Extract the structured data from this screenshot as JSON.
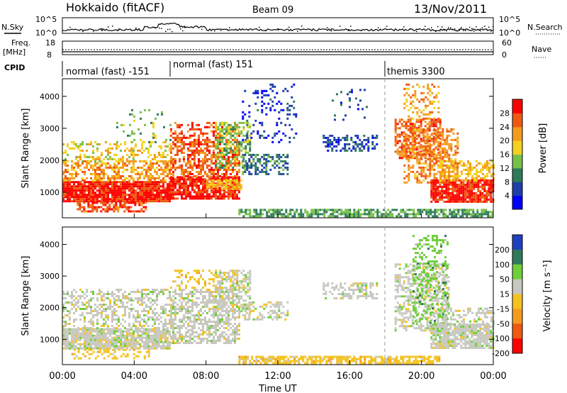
{
  "header": {
    "radar": "Hokkaido (fitACF)",
    "beam": "Beam 09",
    "date": "13/Nov/2011"
  },
  "top_panels": {
    "nsky_label": "N.Sky",
    "nsearch_label": "N.Search",
    "nsky_ticks": [
      "10^5",
      "10^0"
    ],
    "nsearch_ticks": [
      "10^5",
      "10^0"
    ],
    "freq_label": "Freq.",
    "freq_unit": "[MHz]",
    "freq_ticks": [
      "18",
      "8"
    ],
    "nave_label": "Nave",
    "nave_ticks": [
      "60",
      "0"
    ],
    "cpid_label": "CPID",
    "modes": [
      {
        "label": "normal (fast) -151",
        "start_hour": 0
      },
      {
        "label": "normal (fast) 151",
        "start_hour": 6
      },
      {
        "label": "themis 3300",
        "start_hour": 18
      }
    ]
  },
  "chart_data": [
    {
      "type": "heatmap",
      "panel": "power",
      "ylabel": "Slant Range [km]",
      "xlim": [
        0,
        24
      ],
      "ylim": [
        200,
        4550
      ],
      "yticks": [
        "1000",
        "2000",
        "3000",
        "4000"
      ],
      "colorbar_label": "Power [dB]",
      "colorbar_ticks": [
        "4",
        "8",
        "12",
        "16",
        "20",
        "24",
        "28"
      ],
      "colorbar_range": [
        0,
        32
      ],
      "colors": [
        "#0000ff",
        "#1e3fa8",
        "#2f7a5a",
        "#77c04a",
        "#f4d21f",
        "#f49a1e",
        "#ee5a12",
        "#ff0000"
      ],
      "regions": [
        {
          "t0": 0.0,
          "t1": 6.0,
          "r0": 700,
          "r1": 1350,
          "v": 29,
          "d": 0.95
        },
        {
          "t0": 0.8,
          "t1": 4.6,
          "r0": 400,
          "r1": 700,
          "v": 27,
          "d": 0.6
        },
        {
          "t0": 0.0,
          "t1": 6.0,
          "r0": 1350,
          "r1": 2000,
          "v": 22,
          "d": 0.55
        },
        {
          "t0": 0.0,
          "t1": 6.0,
          "r0": 2000,
          "r1": 2600,
          "v": 18,
          "d": 0.35
        },
        {
          "t0": 3.0,
          "t1": 6.0,
          "r0": 2600,
          "r1": 3600,
          "v": 14,
          "d": 0.12
        },
        {
          "t0": 6.0,
          "t1": 9.8,
          "r0": 800,
          "r1": 1500,
          "v": 29,
          "d": 0.85
        },
        {
          "t0": 6.0,
          "t1": 9.8,
          "r0": 1500,
          "r1": 2600,
          "v": 26,
          "d": 0.6
        },
        {
          "t0": 6.0,
          "t1": 9.8,
          "r0": 2600,
          "r1": 3200,
          "v": 27,
          "d": 0.4
        },
        {
          "t0": 8.0,
          "t1": 10.0,
          "r0": 1100,
          "r1": 1400,
          "v": 20,
          "d": 0.8
        },
        {
          "t0": 8.5,
          "t1": 10.5,
          "r0": 1800,
          "r1": 3200,
          "v": 14,
          "d": 0.5
        },
        {
          "t0": 10.0,
          "t1": 12.5,
          "r0": 1600,
          "r1": 2200,
          "v": 9,
          "d": 0.5
        },
        {
          "t0": 10.0,
          "t1": 13.0,
          "r0": 2600,
          "r1": 4400,
          "v": 5,
          "d": 0.15
        },
        {
          "t0": 14.5,
          "t1": 17.5,
          "r0": 2300,
          "r1": 2800,
          "v": 6,
          "d": 0.45
        },
        {
          "t0": 15.0,
          "t1": 17.0,
          "r0": 3300,
          "r1": 4300,
          "v": 6,
          "d": 0.12
        },
        {
          "t0": 9.8,
          "t1": 24.0,
          "r0": 230,
          "r1": 480,
          "v": 12,
          "d": 0.7
        },
        {
          "t0": 18.5,
          "t1": 21.0,
          "r0": 2100,
          "r1": 3300,
          "v": 26,
          "d": 0.6
        },
        {
          "t0": 19.0,
          "t1": 22.0,
          "r0": 1300,
          "r1": 3000,
          "v": 23,
          "d": 0.5
        },
        {
          "t0": 20.5,
          "t1": 24.0,
          "r0": 700,
          "r1": 1400,
          "v": 29,
          "d": 0.9
        },
        {
          "t0": 21.0,
          "t1": 24.0,
          "r0": 1400,
          "r1": 2000,
          "v": 20,
          "d": 0.5
        },
        {
          "t0": 19.0,
          "t1": 21.0,
          "r0": 3300,
          "r1": 4400,
          "v": 22,
          "d": 0.3
        }
      ]
    },
    {
      "type": "heatmap",
      "panel": "velocity",
      "xlabel": "Time UT",
      "ylabel": "Slant Range [km]",
      "xlim": [
        0,
        24
      ],
      "ylim": [
        200,
        4550
      ],
      "xticks": [
        "00:00",
        "04:00",
        "08:00",
        "12:00",
        "16:00",
        "20:00",
        "00:00"
      ],
      "yticks": [
        "1000",
        "2000",
        "3000",
        "4000"
      ],
      "colorbar_label": "Velocity [m s⁻¹]",
      "colorbar_ticks": [
        "200",
        "100",
        "50",
        "15",
        "-15",
        "-50",
        "-100",
        "-200"
      ],
      "colors": [
        "#2040c0",
        "#2f7a5a",
        "#6fcf3a",
        "#c8c8c0",
        "#f4c21f",
        "#f49a1e",
        "#ee5a12",
        "#ff0000"
      ],
      "regions": [
        {
          "t0": 0.0,
          "t1": 6.0,
          "r0": 700,
          "r1": 1350,
          "v": 3,
          "d": 0.9
        },
        {
          "t0": 0.0,
          "t1": 6.0,
          "r0": 1350,
          "r1": 2600,
          "v": 3,
          "d": 0.45
        },
        {
          "t0": 0.5,
          "t1": 5.0,
          "r0": 400,
          "r1": 700,
          "v": 4,
          "d": 0.3
        },
        {
          "t0": 6.0,
          "t1": 9.8,
          "r0": 900,
          "r1": 2600,
          "v": 3,
          "d": 0.6
        },
        {
          "t0": 6.0,
          "t1": 9.8,
          "r0": 2600,
          "r1": 3200,
          "v": 4,
          "d": 0.25
        },
        {
          "t0": 8.5,
          "t1": 10.5,
          "r0": 1800,
          "r1": 3200,
          "v": 3,
          "d": 0.45
        },
        {
          "t0": 10.0,
          "t1": 12.5,
          "r0": 1600,
          "r1": 2200,
          "v": 3,
          "d": 0.4
        },
        {
          "t0": 14.5,
          "t1": 17.5,
          "r0": 2300,
          "r1": 2800,
          "v": 3,
          "d": 0.4
        },
        {
          "t0": 9.8,
          "t1": 21.0,
          "r0": 230,
          "r1": 480,
          "v": 4,
          "d": 0.7
        },
        {
          "t0": 18.5,
          "t1": 21.5,
          "r0": 1300,
          "r1": 3400,
          "v": 3,
          "d": 0.55
        },
        {
          "t0": 19.5,
          "t1": 21.5,
          "r0": 1500,
          "r1": 4300,
          "v": 2,
          "d": 0.3
        },
        {
          "t0": 20.5,
          "t1": 24.0,
          "r0": 700,
          "r1": 1500,
          "v": 3,
          "d": 0.85
        },
        {
          "t0": 21.0,
          "t1": 24.0,
          "r0": 1500,
          "r1": 2000,
          "v": 3,
          "d": 0.4
        }
      ]
    }
  ]
}
